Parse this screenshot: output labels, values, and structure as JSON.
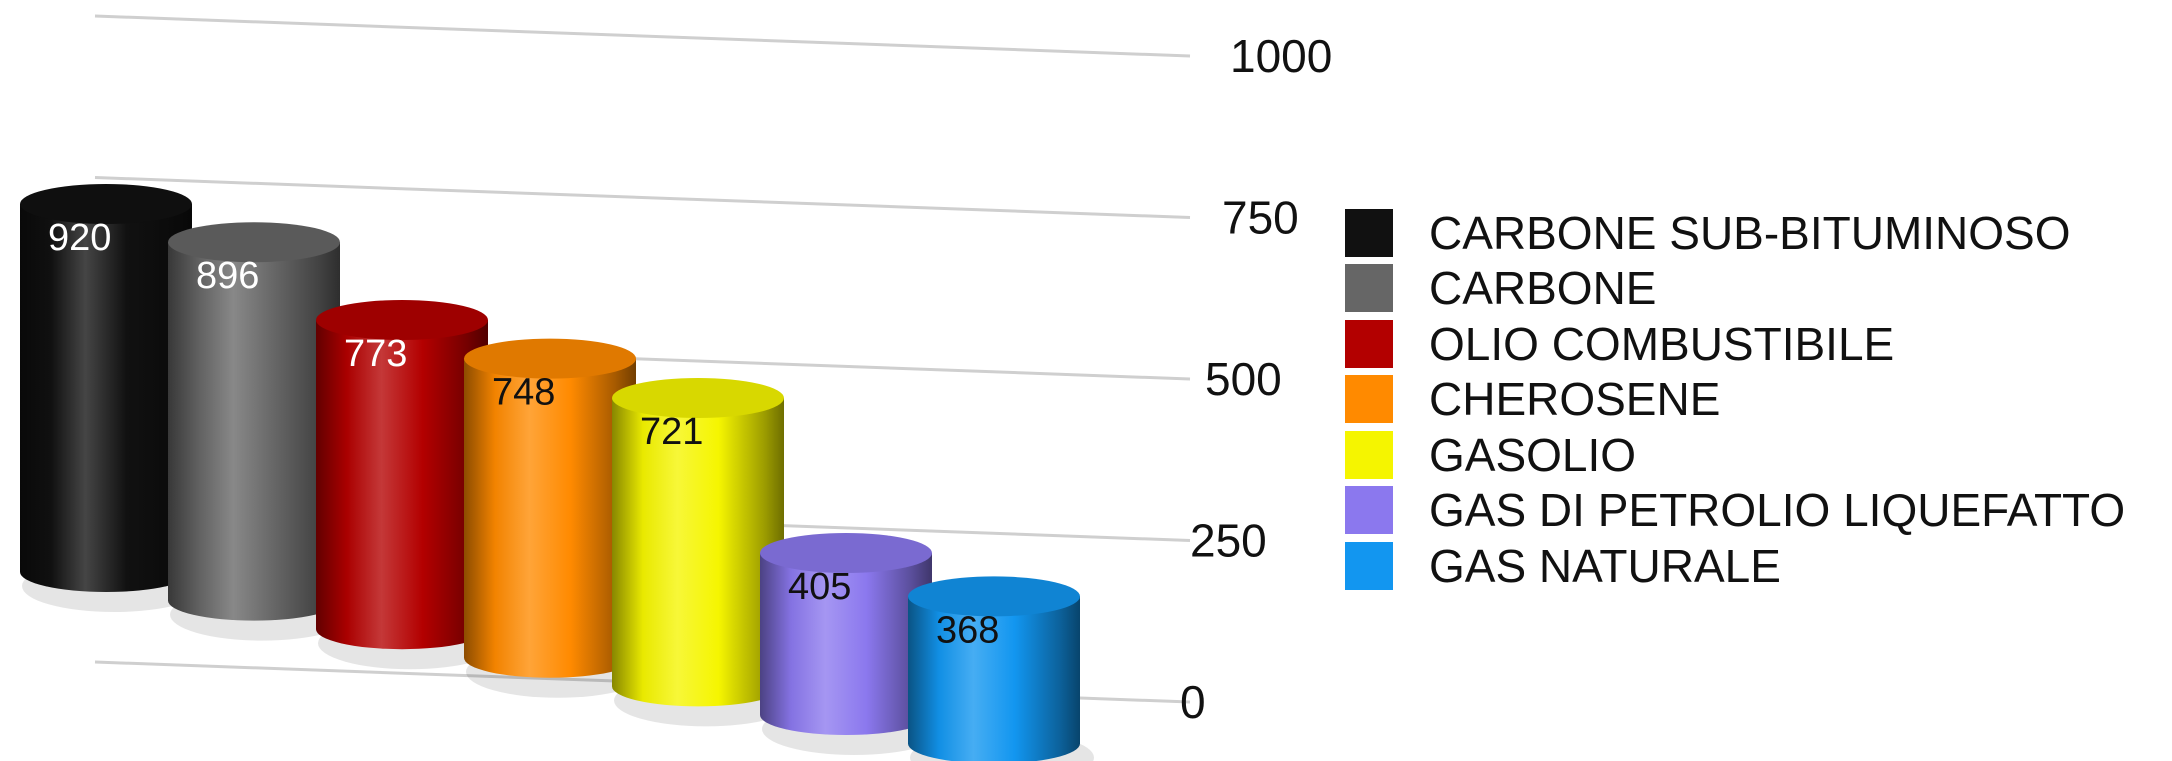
{
  "chart_data": {
    "type": "bar",
    "style": "3d-cylinder",
    "categories": [
      "CARBONE SUB-BITUMINOSO",
      "CARBONE",
      "OLIO COMBUSTIBILE",
      "CHEROSENE",
      "GASOLIO",
      "GAS DI PETROLIO LIQUEFATTO",
      "GAS NATURALE"
    ],
    "values": [
      920,
      896,
      773,
      748,
      721,
      405,
      368
    ],
    "value_labels": [
      "920",
      "896",
      "773",
      "748",
      "721",
      "405",
      "368"
    ],
    "colors": [
      "#111111",
      "#666666",
      "#b30000",
      "#ff8a00",
      "#f5f500",
      "#8b78ee",
      "#1296f0"
    ],
    "label_colors": [
      "#ffffff",
      "#ffffff",
      "#ffffff",
      "#111111",
      "#111111",
      "#111111",
      "#111111"
    ],
    "yticks": [
      0,
      250,
      500,
      750,
      1000
    ],
    "ytick_labels": [
      "0",
      "250",
      "500",
      "750",
      "1000"
    ],
    "ylim": [
      0,
      1000
    ],
    "grid": true,
    "legend_position": "right",
    "title": "",
    "xlabel": "",
    "ylabel": ""
  }
}
